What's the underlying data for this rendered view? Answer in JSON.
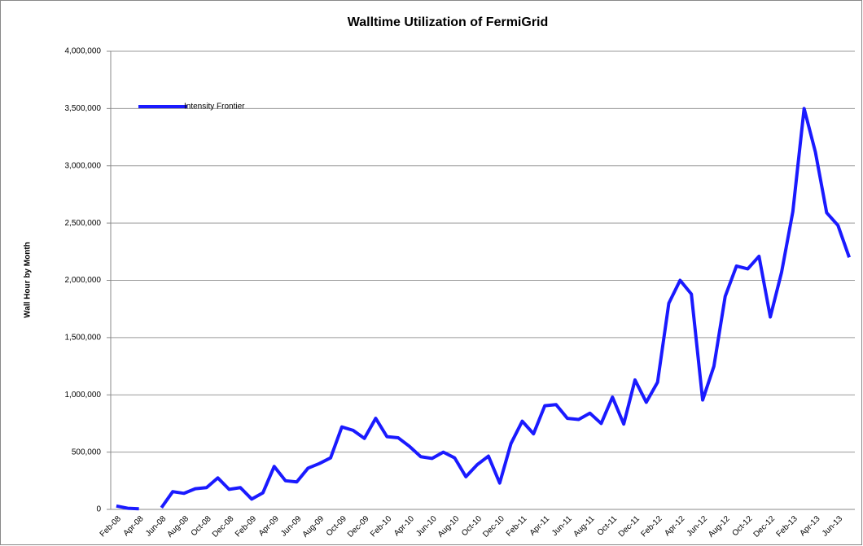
{
  "chart_data": {
    "type": "line",
    "title": "Walltime Utilization of FermiGrid",
    "y_label": "Wall Hour by Month",
    "categories": [
      "Feb-08",
      null,
      "Apr-08",
      null,
      "Jun-08",
      null,
      "Aug-08",
      null,
      "Oct-08",
      null,
      "Dec-08",
      null,
      "Feb-09",
      null,
      "Apr-09",
      null,
      "Jun-09",
      null,
      "Aug-09",
      null,
      "Oct-09",
      null,
      "Dec-09",
      null,
      "Feb-10",
      null,
      "Apr-10",
      null,
      "Jun-10",
      null,
      "Aug-10",
      null,
      "Oct-10",
      null,
      "Dec-10",
      null,
      "Feb-11",
      null,
      "Apr-11",
      null,
      "Jun-11",
      null,
      "Aug-11",
      null,
      "Oct-11",
      null,
      "Dec-11",
      null,
      "Feb-12",
      null,
      "Apr-12",
      null,
      "Jun-12",
      null,
      "Aug-12",
      null,
      "Oct-12",
      null,
      "Dec-12",
      null,
      "Feb-13",
      null,
      "Apr-13",
      null,
      "Jun-13",
      null
    ],
    "series": [
      {
        "name": "Intensity Frontier",
        "color": "#1a1aff",
        "values": [
          30000,
          10000,
          5000,
          null,
          15000,
          155000,
          140000,
          180000,
          190000,
          275000,
          175000,
          190000,
          90000,
          145000,
          375000,
          250000,
          240000,
          360000,
          400000,
          450000,
          720000,
          690000,
          620000,
          795000,
          635000,
          625000,
          550000,
          460000,
          445000,
          500000,
          450000,
          285000,
          390000,
          465000,
          230000,
          575000,
          770000,
          660000,
          905000,
          915000,
          795000,
          785000,
          840000,
          750000,
          980000,
          745000,
          1130000,
          935000,
          1110000,
          1800000,
          2000000,
          1880000,
          955000,
          1250000,
          1860000,
          2125000,
          2100000,
          2210000,
          1680000,
          2070000,
          2600000,
          3500000,
          3120000,
          2590000,
          2480000,
          2200000
        ]
      }
    ],
    "ylim": [
      0,
      4000000
    ],
    "yticks": [
      0,
      {
        "value": 500000,
        "label": "500,000"
      },
      {
        "value": 1000000,
        "label": "1,000,000"
      },
      {
        "value": 1500000,
        "label": "1,500,000"
      },
      {
        "value": 2000000,
        "label": "2,000,000"
      },
      {
        "value": 2500000,
        "label": "2,500,000"
      },
      {
        "value": 3000000,
        "label": "3,000,000"
      },
      {
        "value": 3500000,
        "label": "3,500,000"
      },
      {
        "value": 4000000,
        "label": "4,000,000"
      }
    ],
    "grid": true,
    "legend": "top-left"
  }
}
